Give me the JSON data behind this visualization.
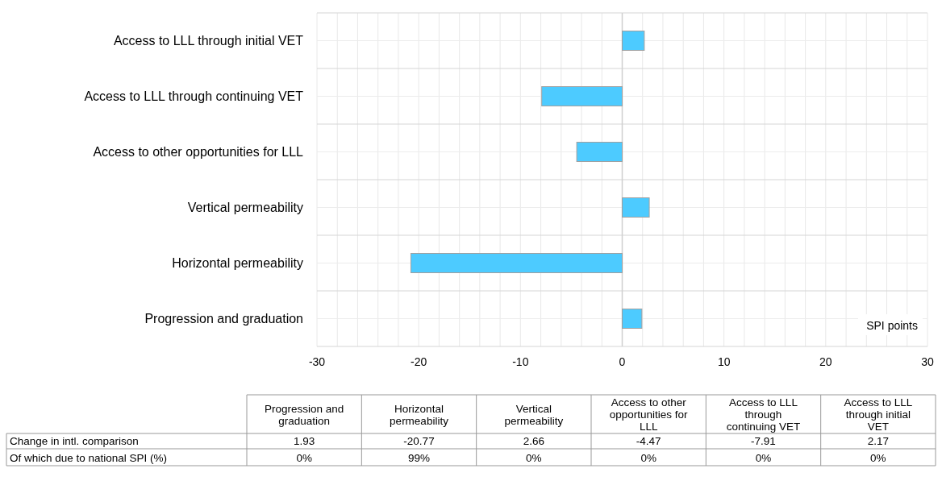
{
  "chart_data": {
    "type": "bar",
    "orientation": "horizontal",
    "categories": [
      "Access to LLL through initial VET",
      "Access to LLL through continuing VET",
      "Access to other opportunities for LLL",
      "Vertical permeability",
      "Horizontal permeability",
      "Progression and graduation"
    ],
    "series": [
      {
        "name": "Change in intl. comparison",
        "color": "#4dcbff",
        "values": [
          2.17,
          -7.91,
          -4.47,
          2.66,
          -20.77,
          1.93
        ]
      }
    ],
    "xlim": [
      -30,
      30
    ],
    "xticks": [
      -30,
      {
        "value": -28,
        "label": null
      },
      {
        "value": -26,
        "label": null
      },
      {
        "value": -24,
        "label": null
      },
      {
        "value": -22,
        "label": null
      },
      -20,
      {
        "value": -18,
        "label": null
      },
      {
        "value": -16,
        "label": null
      },
      {
        "value": -14,
        "label": null
      },
      {
        "value": -12,
        "label": null
      },
      -10,
      {
        "value": -8,
        "label": null
      },
      {
        "value": -6,
        "label": null
      },
      {
        "value": -4,
        "label": null
      },
      {
        "value": -2,
        "label": null
      },
      0,
      {
        "value": 2,
        "label": null
      },
      {
        "value": 4,
        "label": null
      },
      {
        "value": 6,
        "label": null
      },
      {
        "value": 8,
        "label": null
      },
      10,
      {
        "value": 12,
        "label": null
      },
      {
        "value": 14,
        "label": null
      },
      {
        "value": 16,
        "label": null
      },
      {
        "value": 18,
        "label": null
      },
      20,
      {
        "value": 22,
        "label": null
      },
      {
        "value": 24,
        "label": null
      },
      {
        "value": 26,
        "label": null
      },
      {
        "value": 28,
        "label": null
      },
      30
    ],
    "grid": true,
    "annotations": [
      "SPI points",
      "Of which due to national SPI (%)",
      "0%",
      "99%",
      "0%",
      "0%",
      "0%",
      "0%",
      "1.93",
      "-20.77",
      "2.66",
      "-4.47",
      "-7.91",
      "2.17"
    ]
  }
}
